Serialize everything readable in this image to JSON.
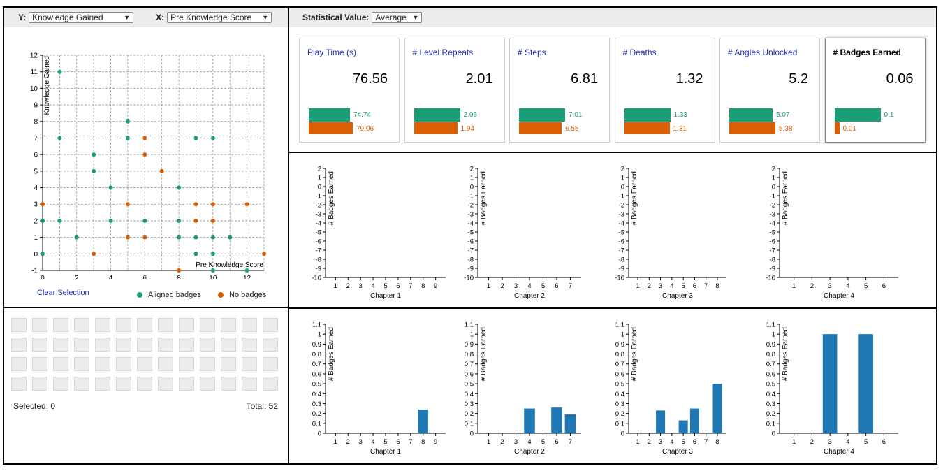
{
  "left_panel": {
    "y_label": "Y:",
    "y_select": "Knowledge Gained",
    "x_label": "X:",
    "x_select": "Pre Knowledge Score",
    "clear_selection": "Clear Selection",
    "legend": [
      {
        "label": "Aligned badges",
        "color": "#1b9e77"
      },
      {
        "label": "No badges",
        "color": "#d95f02"
      }
    ],
    "selected_text": "Selected: 0",
    "total_text": "Total: 52"
  },
  "right_panel": {
    "stat_label": "Statistical Value:",
    "stat_select": "Average",
    "stats": [
      {
        "title": "Play Time (s)",
        "value": "76.56",
        "green": "74.74",
        "orange": "79.06",
        "green_frac": 0.9,
        "orange_frac": 0.95
      },
      {
        "title": "# Level Repeats",
        "value": "2.01",
        "green": "2.06",
        "orange": "1.94",
        "green_frac": 1.0,
        "orange_frac": 0.94
      },
      {
        "title": "# Steps",
        "value": "6.81",
        "green": "7.01",
        "orange": "6.55",
        "green_frac": 1.0,
        "orange_frac": 0.93
      },
      {
        "title": "# Deaths",
        "value": "1.32",
        "green": "1.33",
        "orange": "1.31",
        "green_frac": 1.0,
        "orange_frac": 0.98
      },
      {
        "title": "# Angles Unlocked",
        "value": "5.2",
        "green": "5.07",
        "orange": "5.38",
        "green_frac": 0.94,
        "orange_frac": 1.0
      },
      {
        "title": "# Badges Earned",
        "value": "0.06",
        "green": "0.1",
        "orange": "0.01",
        "green_frac": 1.0,
        "orange_frac": 0.1
      }
    ]
  },
  "chart_data": [
    {
      "type": "scatter",
      "title": "",
      "xlabel": "Pre Knowledge Score",
      "ylabel": "Knowledge Gained",
      "xlim": [
        0,
        13
      ],
      "ylim": [
        -1,
        12
      ],
      "grid": true,
      "series": [
        {
          "name": "Aligned badges",
          "color": "#1b9e77",
          "points": [
            [
              0,
              2
            ],
            [
              0,
              0
            ],
            [
              1,
              11
            ],
            [
              1,
              7
            ],
            [
              1,
              2
            ],
            [
              2,
              1
            ],
            [
              3,
              6
            ],
            [
              3,
              5
            ],
            [
              4,
              4
            ],
            [
              4,
              2
            ],
            [
              5,
              8
            ],
            [
              5,
              7
            ],
            [
              6,
              2
            ],
            [
              8,
              4
            ],
            [
              8,
              2
            ],
            [
              8,
              1
            ],
            [
              9,
              7
            ],
            [
              9,
              1
            ],
            [
              9,
              0
            ],
            [
              10,
              7
            ],
            [
              10,
              1
            ],
            [
              10,
              0
            ],
            [
              10,
              -1
            ],
            [
              11,
              1
            ],
            [
              12,
              -1
            ]
          ]
        },
        {
          "name": "No badges",
          "color": "#d95f02",
          "points": [
            [
              0,
              3
            ],
            [
              3,
              0
            ],
            [
              5,
              3
            ],
            [
              5,
              1
            ],
            [
              6,
              7
            ],
            [
              6,
              6
            ],
            [
              6,
              1
            ],
            [
              7,
              5
            ],
            [
              8,
              -1
            ],
            [
              9,
              3
            ],
            [
              9,
              2
            ],
            [
              10,
              3
            ],
            [
              10,
              2
            ],
            [
              12,
              3
            ],
            [
              13,
              0
            ]
          ]
        }
      ]
    },
    {
      "type": "bar",
      "xlabel": "Chapter 1",
      "ylabel": "# Badges Earned",
      "categories": [
        "1",
        "2",
        "3",
        "4",
        "5",
        "6",
        "7",
        "8",
        "9"
      ],
      "values": [
        0,
        0,
        0,
        0,
        0,
        0,
        0,
        0,
        0
      ],
      "ylim": [
        -10,
        2
      ]
    },
    {
      "type": "bar",
      "xlabel": "Chapter 2",
      "ylabel": "# Badges Earned",
      "categories": [
        "1",
        "2",
        "3",
        "4",
        "5",
        "6",
        "7"
      ],
      "values": [
        0,
        0,
        0,
        0,
        0,
        0,
        0
      ],
      "ylim": [
        -10,
        2
      ]
    },
    {
      "type": "bar",
      "xlabel": "Chapter 3",
      "ylabel": "# Badges Earned",
      "categories": [
        "1",
        "2",
        "3",
        "4",
        "5",
        "6",
        "7",
        "8"
      ],
      "values": [
        0,
        0,
        0,
        0,
        0,
        0,
        0,
        0
      ],
      "ylim": [
        -10,
        2
      ]
    },
    {
      "type": "bar",
      "xlabel": "Chapter 4",
      "ylabel": "# Badges Earned",
      "categories": [
        "1",
        "2",
        "3",
        "4",
        "5",
        "6"
      ],
      "values": [
        0,
        0,
        0,
        0,
        0,
        0
      ],
      "ylim": [
        -10,
        2
      ]
    },
    {
      "type": "bar",
      "xlabel": "Chapter 1",
      "ylabel": "# Badges Earned",
      "categories": [
        "1",
        "2",
        "3",
        "4",
        "5",
        "6",
        "7",
        "8",
        "9"
      ],
      "values": [
        0,
        0,
        0,
        0,
        0,
        0,
        0,
        0.24,
        0
      ],
      "ylim": [
        0,
        1.1
      ]
    },
    {
      "type": "bar",
      "xlabel": "Chapter 2",
      "ylabel": "# Badges Earned",
      "categories": [
        "1",
        "2",
        "3",
        "4",
        "5",
        "6",
        "7"
      ],
      "values": [
        0,
        0,
        0,
        0.25,
        0,
        0.26,
        0.19
      ],
      "ylim": [
        0,
        1.1
      ]
    },
    {
      "type": "bar",
      "xlabel": "Chapter 3",
      "ylabel": "# Badges Earned",
      "categories": [
        "1",
        "2",
        "3",
        "4",
        "5",
        "6",
        "7",
        "8"
      ],
      "values": [
        0,
        0,
        0.23,
        0,
        0.13,
        0.25,
        0,
        0.5
      ],
      "ylim": [
        0,
        1.1
      ]
    },
    {
      "type": "bar",
      "xlabel": "Chapter 4",
      "ylabel": "# Badges Earned",
      "categories": [
        "1",
        "2",
        "3",
        "4",
        "5",
        "6"
      ],
      "values": [
        0,
        0,
        1,
        0,
        1,
        0
      ],
      "ylim": [
        0,
        1.1
      ]
    }
  ]
}
